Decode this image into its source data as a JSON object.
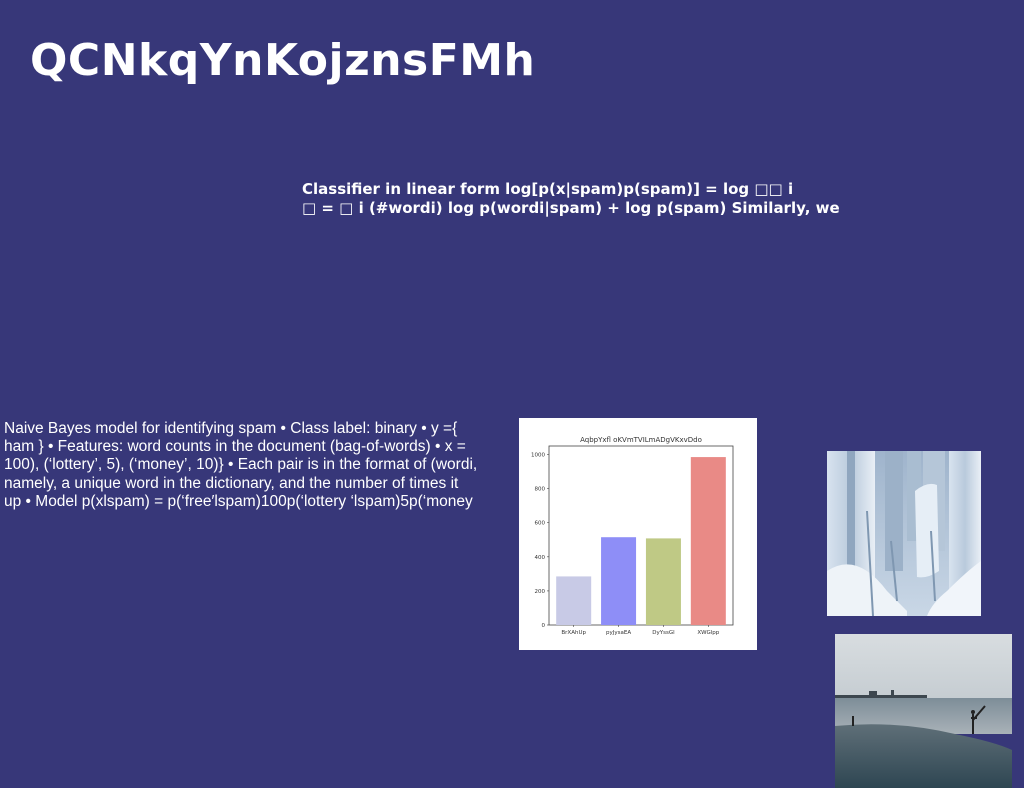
{
  "title": "QCNkqYnKojznsFMh",
  "classifier_text": {
    "lines": [
      "Classifier in linear form log[p(x|spam)p(spam)] = log □□ i",
      "□ = □ i (#wordi) log p(wordi|spam) + log p(spam) Similarly, we"
    ]
  },
  "naive_bayes_text": {
    "lines": [
      "Naive Bayes model for identifying spam • Class label: binary • y ={",
      "ham } • Features: word counts in the document (bag-of-words) • x =",
      "100), (‘lottery’, 5), (‘money’, 10)} • Each pair is in the format of (wordi,",
      "namely, a unique word in the dictionary, and the number of times it",
      "up • Model p(xlspam) = p(‘free′lspam)100p(‘lottery ‘lspam)5p(‘money"
    ]
  },
  "chart_data": {
    "type": "bar",
    "title": "AqbpYxfl oKVmTVILmADgVKxvDdo",
    "xlabel": "",
    "ylabel": "",
    "categories": [
      "BrXAhUp",
      "pyJysaEA",
      "DyYssGl",
      "XWGlpp"
    ],
    "values": [
      285,
      515,
      508,
      985
    ],
    "colors": [
      "#c8cae6",
      "#8e8ef7",
      "#bfc985",
      "#e98a86"
    ],
    "ylim": [
      0,
      1050
    ],
    "yticks": [
      0,
      200,
      400,
      600,
      800,
      1000
    ],
    "grid": false
  },
  "images": {
    "ice_photo": "frozen-ice-columns-photo",
    "beach_photo": "beach-pier-fisherman-photo"
  }
}
